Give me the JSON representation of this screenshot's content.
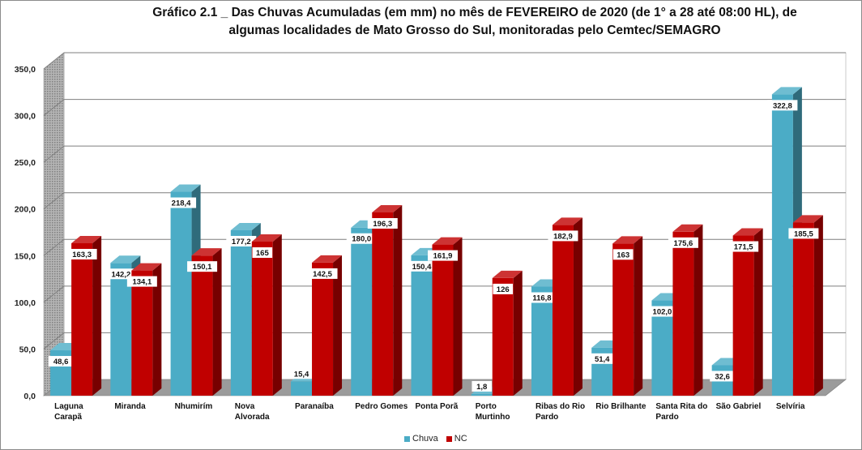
{
  "title": {
    "line1": "Gráfico 2.1 _ Das Chuvas Acumuladas (em mm) no mês de FEVEREIRO de 2020 (de 1° a 28  até 08:00 HL),  de",
    "line2": "algumas localidades de Mato Grosso do Sul, monitoradas pelo Cemtec/SEMAGRO"
  },
  "chart_data": {
    "type": "bar",
    "style": "3d-clustered-column",
    "title": "Gráfico 2.1 _ Das Chuvas Acumuladas (em mm) no mês de FEVEREIRO de 2020 (de 1° a 28  até 08:00 HL),  de algumas localidades de Mato Grosso do Sul, monitoradas pelo Cemtec/SEMAGRO",
    "categories": [
      [
        "Laguna",
        "Carapã"
      ],
      [
        "Miranda"
      ],
      [
        "Nhumirím"
      ],
      [
        "Nova",
        "Alvorada"
      ],
      [
        "Paranaíba"
      ],
      [
        "Pedro Gomes"
      ],
      [
        "Ponta Porã"
      ],
      [
        "Porto",
        "Murtinho"
      ],
      [
        "Ribas do Rio",
        "Pardo"
      ],
      [
        "Rio Brilhante"
      ],
      [
        "Santa Rita do",
        "Pardo"
      ],
      [
        "São Gabriel"
      ],
      [
        "Selvíria"
      ]
    ],
    "series": [
      {
        "name": "Chuva",
        "color": "#4bacc6",
        "values": [
          48.6,
          142.2,
          218.4,
          177.2,
          15.4,
          180.0,
          150.4,
          1.8,
          116.8,
          51.4,
          102.0,
          32.6,
          322.8
        ],
        "labels": [
          "48,6",
          "142,2",
          "218,4",
          "177,2",
          "15,4",
          "180,0",
          "150,4",
          "1,8",
          "116,8",
          "51,4",
          "102,0",
          "32,6",
          "322,8"
        ]
      },
      {
        "name": "NC",
        "color": "#c00000",
        "values": [
          163.3,
          134.1,
          150.1,
          165,
          142.5,
          196.3,
          161.9,
          126,
          182.9,
          163,
          175.6,
          171.5,
          185.5
        ],
        "labels": [
          "163,3",
          "134,1",
          "150,1",
          "165",
          "142,5",
          "196,3",
          "161,9",
          "126",
          "182,9",
          "163",
          "175,6",
          "171,5",
          "185,5"
        ]
      }
    ],
    "y_ticks": [
      "0,0",
      "50,0",
      "100,0",
      "150,0",
      "200,0",
      "250,0",
      "300,0",
      "350,0"
    ],
    "ylim": [
      0,
      350
    ],
    "xlabel": "",
    "ylabel": "",
    "grid": true,
    "legend_position": "bottom"
  },
  "legend": {
    "items": [
      {
        "label": "Chuva",
        "color": "#4bacc6"
      },
      {
        "label": "NC",
        "color": "#c00000"
      }
    ]
  }
}
